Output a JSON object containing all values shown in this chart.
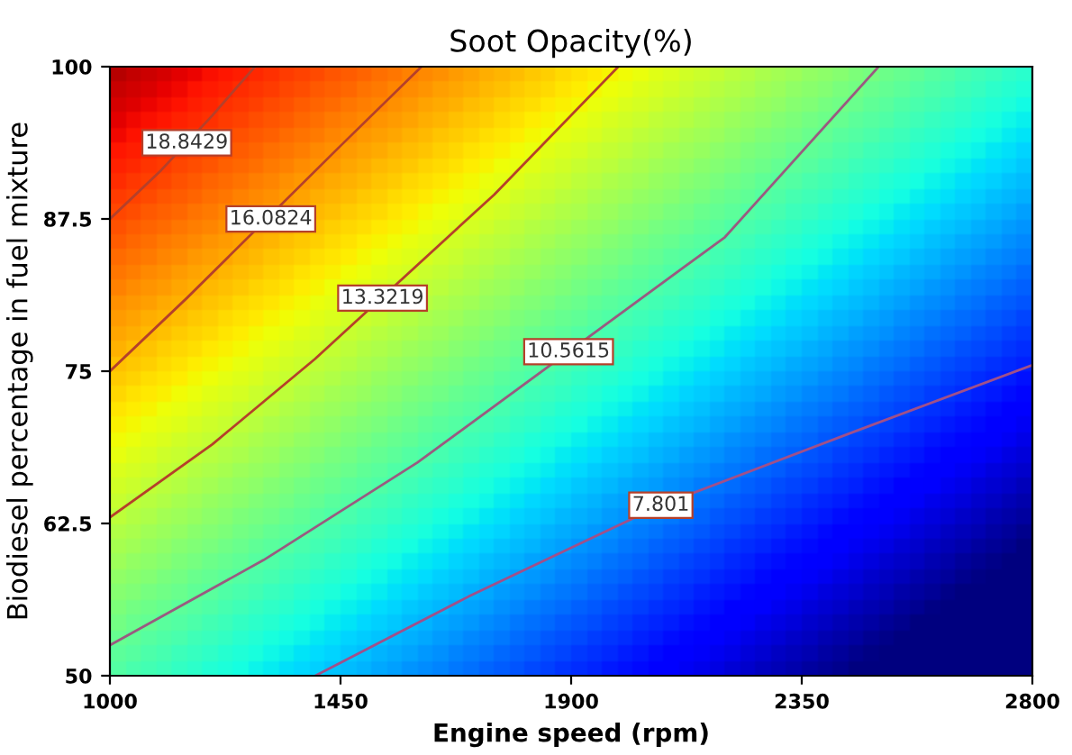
{
  "chart_data": {
    "type": "line",
    "title": "Soot Opacity(%)",
    "xlabel": "Engine speed (rpm)",
    "ylabel": "Biodiesel percentage in fuel mixture",
    "xlim": [
      1000,
      2800
    ],
    "xticks": [
      1000,
      1450,
      1900,
      2350,
      2800
    ],
    "ylim": [
      50,
      100
    ],
    "yticks": [
      50,
      62.5,
      75,
      87.5,
      100
    ],
    "grid": false,
    "legend": false,
    "marker": "none",
    "line_style": "solid",
    "series": [
      {
        "color": "#b5402a",
        "x": [
          1000,
          1100,
          1200,
          1283
        ],
        "values": [
          87.5,
          91.5,
          96,
          100
        ]
      },
      {
        "color": "#b5402a",
        "x": [
          1000,
          1150,
          1450,
          1608
        ],
        "values": [
          75,
          81,
          93.5,
          100
        ]
      },
      {
        "color": "#b5402a",
        "x": [
          1000,
          1200,
          1400,
          1750,
          1992
        ],
        "values": [
          63,
          69,
          76,
          89.5,
          100
        ]
      },
      {
        "color": "#9a5a80",
        "x": [
          1000,
          1300,
          1600,
          2200,
          2500
        ],
        "values": [
          52.5,
          59.5,
          67.5,
          86,
          100
        ]
      },
      {
        "color": "#a0508a",
        "x": [
          1401,
          1700,
          2075,
          2450,
          2800
        ],
        "values": [
          50,
          56.5,
          64,
          70,
          75.5
        ]
      }
    ],
    "annotations": [
      {
        "text": "18.8429",
        "x": 1150,
        "y": 93.75
      },
      {
        "text": "16.0824",
        "x": 1314,
        "y": 87.5
      },
      {
        "text": "13.3219",
        "x": 1532,
        "y": 81
      },
      {
        "text": "10.5615",
        "x": 1895,
        "y": 76.6
      },
      {
        "text": "7.801",
        "x": 2075,
        "y": 64
      }
    ]
  }
}
